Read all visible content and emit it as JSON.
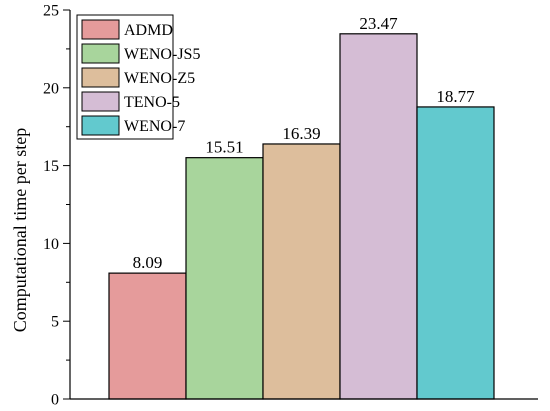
{
  "chart_data": {
    "type": "bar",
    "categories": [
      "ADMD",
      "WENO-JS5",
      "WENO-Z5",
      "TENO-5",
      "WENO-7"
    ],
    "values": [
      8.09,
      15.51,
      16.39,
      23.47,
      18.77
    ],
    "value_labels": [
      "8.09",
      "15.51",
      "16.39",
      "23.47",
      "18.77"
    ],
    "colors": [
      "#E59B9B",
      "#A8D59C",
      "#DDBE9C",
      "#D5BDD5",
      "#62C9CE"
    ],
    "title": "",
    "xlabel": "",
    "ylabel": "Computational time per step",
    "ylim": [
      0,
      25
    ],
    "yticks": [
      0,
      5,
      10,
      15,
      20,
      25
    ],
    "ytick_labels": [
      "0",
      "5",
      "10",
      "15",
      "20",
      "25"
    ],
    "grid": false,
    "legend_position": "top-left"
  }
}
